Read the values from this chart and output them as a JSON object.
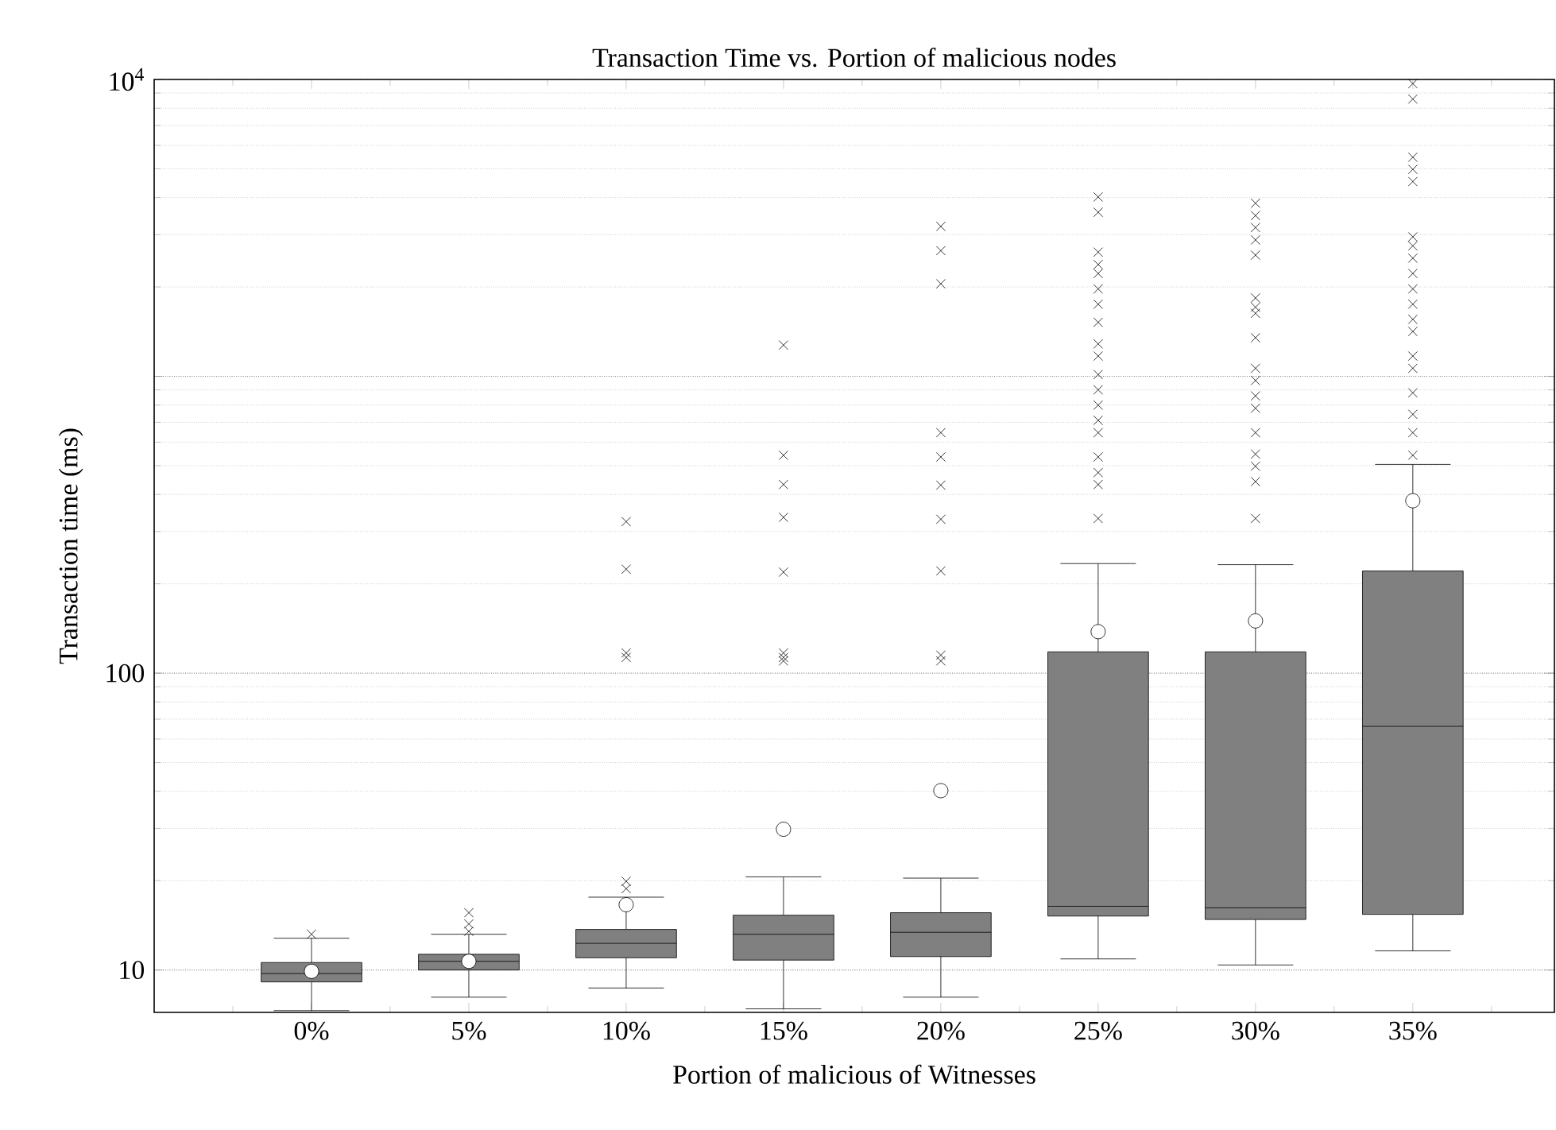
{
  "chart_data": {
    "type": "box",
    "title": "Transaction Time vs. Portion of malicious nodes",
    "xlabel": "Portion of malicious of Witnesses",
    "ylabel": "Transaction time (ms)",
    "categories": [
      "0%",
      "5%",
      "10%",
      "15%",
      "20%",
      "25%",
      "30%",
      "35%"
    ],
    "color": "#808080",
    "marker": "cross",
    "log": "y",
    "grid": true,
    "ylim": [
      7.2,
      10000
    ],
    "yticks": [
      10,
      100,
      {
        "value": 1000,
        "label": null
      },
      {
        "value": 10000,
        "label": "10$^{4}$"
      }
    ],
    "boxes": [
      {
        "low": 7.3,
        "q1": 9.12,
        "median": 9.73,
        "q3": 10.6,
        "high": 12.8,
        "mean": 9.9,
        "outliers": [
          13.2
        ]
      },
      {
        "low": 8.1,
        "q1": 10.0,
        "median": 10.7,
        "q3": 11.3,
        "high": 13.2,
        "mean": 10.7,
        "outliers": [
          15.6,
          14.3,
          13.5
        ]
      },
      {
        "low": 8.7,
        "q1": 11.0,
        "median": 12.3,
        "q3": 13.7,
        "high": 17.6,
        "mean": 16.6,
        "outliers": [
          324,
          224,
          117,
          113,
          19.9,
          18.8
        ]
      },
      {
        "low": 7.4,
        "q1": 10.8,
        "median": 13.2,
        "q3": 15.3,
        "high": 20.6,
        "mean": 29.8,
        "outliers": [
          1274,
          542,
          432,
          335,
          219,
          117,
          113,
          110
        ]
      },
      {
        "low": 8.1,
        "q1": 11.1,
        "median": 13.4,
        "q3": 15.6,
        "high": 20.4,
        "mean": 40.2,
        "outliers": [
          3200,
          2650,
          2050,
          646,
          535,
          430,
          330,
          221,
          115,
          110
        ]
      },
      {
        "low": 10.9,
        "q1": 15.2,
        "median": 16.4,
        "q3": 118,
        "high": 234,
        "mean": 138,
        "outliers": [
          4020,
          3570,
          2620,
          2380,
          2220,
          1970,
          1750,
          1520,
          1286,
          1170,
          1014,
          901,
          800,
          711,
          646,
          535,
          474,
          432,
          332
        ]
      },
      {
        "low": 10.4,
        "q1": 14.8,
        "median": 16.2,
        "q3": 118,
        "high": 232,
        "mean": 150,
        "outliers": [
          3830,
          3480,
          3170,
          2880,
          2560,
          1836,
          1710,
          1630,
          1349,
          1064,
          968,
          859,
          781,
          646,
          547,
          498,
          442,
          332
        ]
      },
      {
        "low": 11.6,
        "q1": 15.4,
        "median": 66.2,
        "q3": 221,
        "high": 505,
        "mean": 381,
        "outliers": [
          9680,
          8590,
          5470,
          4980,
          4530,
          2950,
          2750,
          2500,
          2220,
          1970,
          1750,
          1556,
          1416,
          1170,
          1064,
          880,
          745,
          646,
          542
        ]
      }
    ]
  }
}
